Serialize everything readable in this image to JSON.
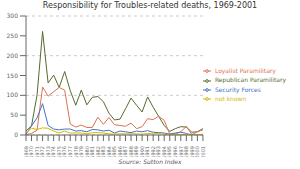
{
  "chart_data": {
    "type": "line",
    "title": "Responsibility for Troubles-related deaths, 1969-2001",
    "annotations": [
      "Source: Sutton Index"
    ],
    "categories": [
      "1969",
      "1970",
      "1971",
      "1972",
      "1973",
      "1974",
      "1975",
      "1976",
      "1977",
      "1978",
      "1979",
      "1980",
      "1981",
      "1982",
      "1983",
      "1984",
      "1985",
      "1986",
      "1987",
      "1988",
      "1989",
      "1990",
      "1991",
      "1992",
      "1993",
      "1994",
      "1995",
      "1996",
      "1997",
      "1998",
      "1999",
      "2000",
      "2001"
    ],
    "series": [
      {
        "name": "Republican Paramilitary",
        "color": "#556b2f",
        "values": [
          10,
          23,
          101,
          261,
          131,
          151,
          120,
          160,
          112,
          75,
          113,
          76,
          95,
          97,
          84,
          55,
          38,
          40,
          66,
          93,
          75,
          58,
          96,
          70,
          47,
          24,
          9,
          16,
          21,
          20,
          7,
          8,
          16
        ]
      },
      {
        "name": "Loyalist Paramilitary",
        "color": "#e07050",
        "values": [
          1,
          4,
          12,
          121,
          98,
          109,
          120,
          113,
          28,
          20,
          25,
          19,
          19,
          45,
          27,
          44,
          26,
          24,
          22,
          30,
          16,
          21,
          41,
          39,
          47,
          37,
          2,
          3,
          8,
          22,
          1,
          8,
          13
        ]
      },
      {
        "name": "Security Forces",
        "color": "#4472c4",
        "values": [
          2,
          23,
          43,
          79,
          24,
          15,
          13,
          15,
          15,
          10,
          11,
          8,
          14,
          13,
          10,
          12,
          5,
          10,
          8,
          6,
          10,
          8,
          11,
          7,
          6,
          5,
          2,
          5,
          7,
          4,
          0,
          0,
          0
        ]
      },
      {
        "name": "not known",
        "color": "#d4b800",
        "values": [
          5,
          17,
          14,
          18,
          17,
          10,
          5,
          10,
          5,
          5,
          5,
          3,
          6,
          6,
          5,
          3,
          2,
          3,
          3,
          3,
          3,
          2,
          4,
          3,
          4,
          2,
          0,
          2,
          1,
          2,
          0,
          0,
          2
        ]
      }
    ],
    "ylim": [
      0,
      300
    ],
    "yticks": [
      0,
      50,
      100,
      150,
      200,
      250,
      300
    ],
    "grid": true,
    "legend": "right"
  }
}
